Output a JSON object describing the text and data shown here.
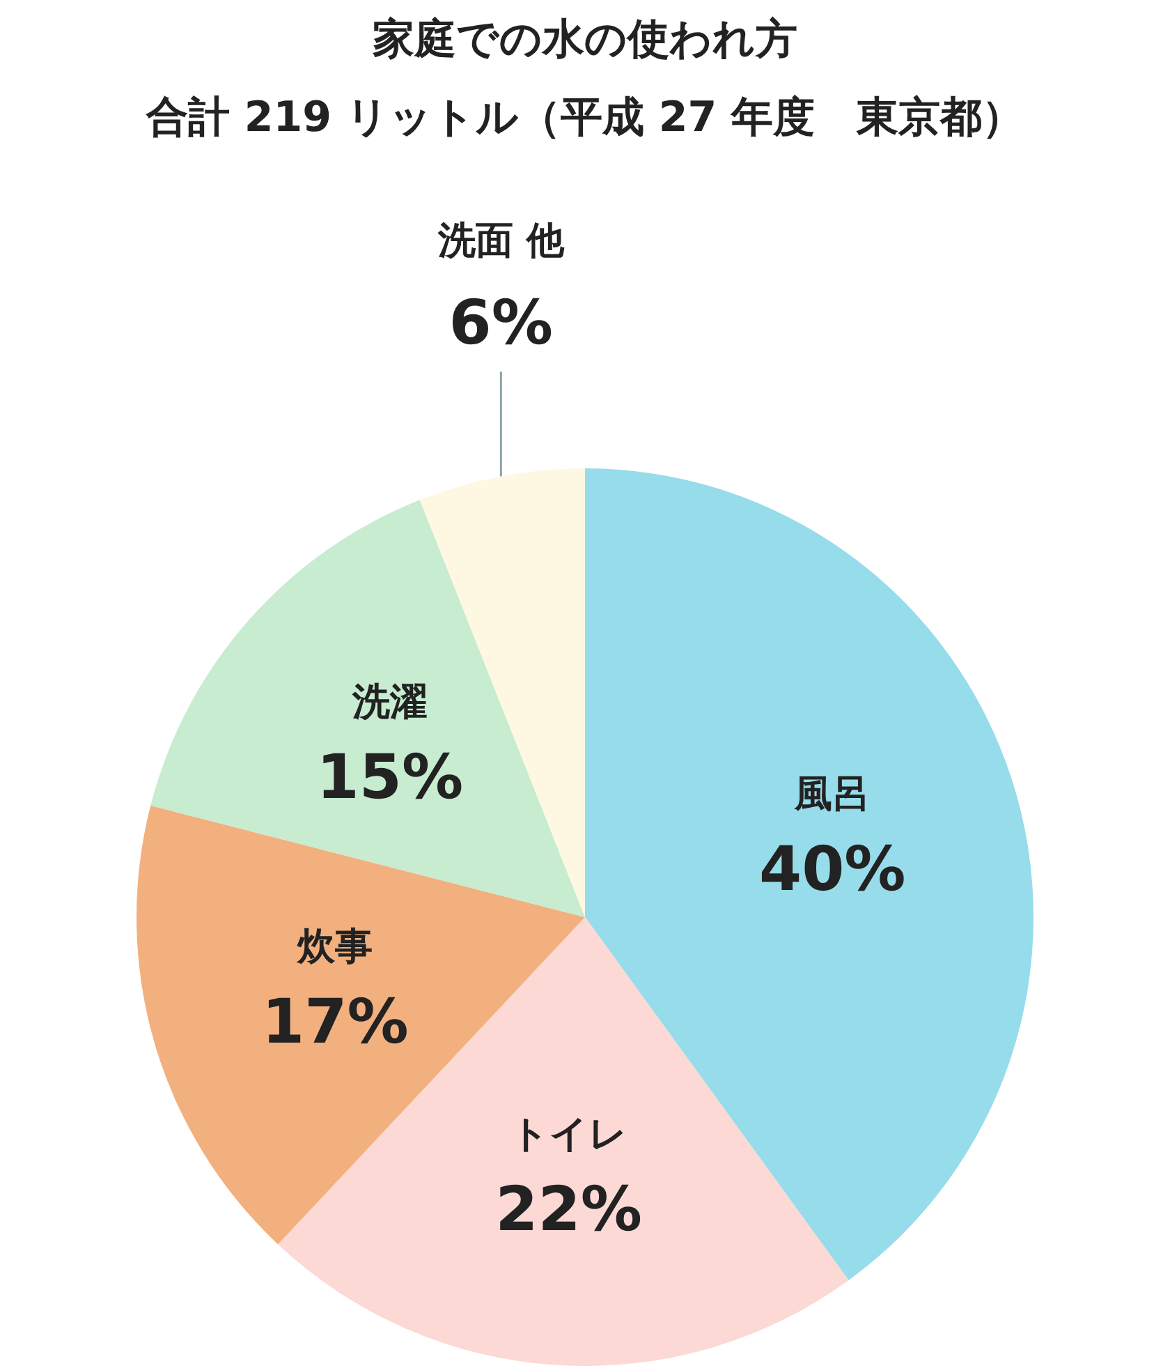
{
  "chart_data": {
    "type": "pie",
    "title": "家庭での水の使われ方",
    "subtitle": "合計 219 リットル（平成 27 年度　東京都）",
    "categories": [
      "風呂",
      "トイレ",
      "炊事",
      "洗濯",
      "洗面 他"
    ],
    "values": [
      40,
      22,
      17,
      15,
      6
    ],
    "colors": [
      "#97dcea",
      "#fcd9d4",
      "#f3b07f",
      "#c7ecd0",
      "#fef8e3"
    ],
    "value_labels": [
      "40%",
      "22%",
      "17%",
      "15%",
      "6%"
    ],
    "legend": false
  }
}
